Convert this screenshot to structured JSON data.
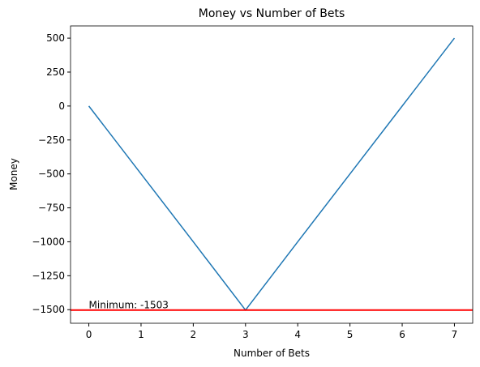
{
  "chart_data": {
    "type": "line",
    "title": "Money vs Number of Bets",
    "x_label": "Number of Bets",
    "y_label": "Money",
    "x": [
      0,
      1,
      2,
      3,
      4,
      5,
      6,
      7
    ],
    "series": [
      {
        "name": "Money",
        "color": "#1f77b4",
        "values": [
          0,
          -500,
          -1000,
          -1503,
          -1000,
          -500,
          0,
          500
        ]
      }
    ],
    "hline": {
      "value": -1503,
      "color": "#ff0000"
    },
    "annotation": "Minimum: -1503",
    "xlim": [
      -0.35,
      7.35
    ],
    "xticks": [
      0,
      1,
      2,
      3,
      4,
      5,
      6,
      7
    ],
    "ylim": [
      -1600,
      590
    ],
    "yticks": [
      {
        "value": -1500,
        "label": "−1500"
      },
      {
        "value": -1250,
        "label": "−1250"
      },
      {
        "value": -1000,
        "label": "−1000"
      },
      {
        "value": -750,
        "label": "−750"
      },
      {
        "value": -500,
        "label": "−500"
      },
      {
        "value": -250,
        "label": "−250"
      },
      0,
      250,
      500
    ]
  }
}
